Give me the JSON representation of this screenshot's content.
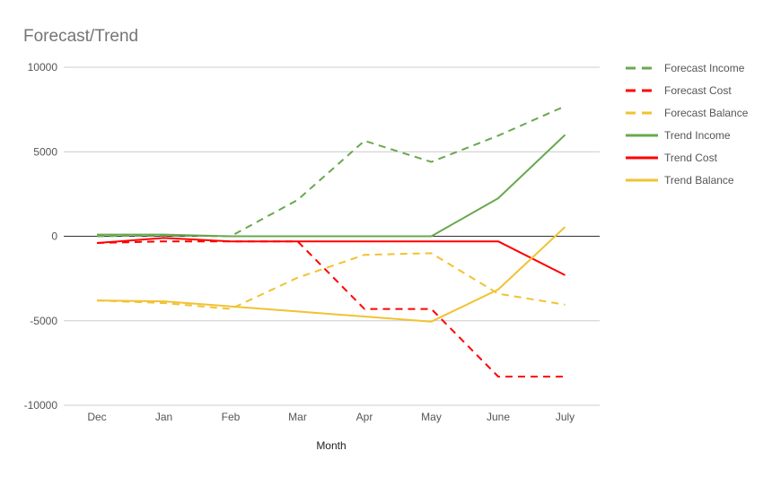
{
  "chart_data": {
    "type": "line",
    "title": "Forecast/Trend",
    "xlabel": "Month",
    "ylabel": "",
    "categories": [
      "Dec",
      "Jan",
      "Feb",
      "Mar",
      "Apr",
      "May",
      "June",
      "July"
    ],
    "ylim": [
      -10000,
      10000
    ],
    "yticks": [
      10000,
      5000,
      0,
      -5000,
      -10000
    ],
    "grid": true,
    "legend_position": "right",
    "series": [
      {
        "name": "Forecast Income",
        "color": "#6aa84f",
        "style": "dashed",
        "values": [
          0,
          50,
          0,
          2150,
          5650,
          4400,
          5950,
          7700
        ]
      },
      {
        "name": "Forecast Cost",
        "color": "#ff0000",
        "style": "dashed",
        "values": [
          -400,
          -300,
          -300,
          -300,
          -4300,
          -4300,
          -8300,
          -8300
        ]
      },
      {
        "name": "Forecast Balance",
        "color": "#f1c232",
        "style": "dashed",
        "values": [
          -3800,
          -3950,
          -4300,
          -2450,
          -1100,
          -1000,
          -3400,
          -4050
        ]
      },
      {
        "name": "Trend Income",
        "color": "#6aa84f",
        "style": "solid",
        "values": [
          100,
          100,
          0,
          0,
          0,
          0,
          2250,
          6000
        ]
      },
      {
        "name": "Trend Cost",
        "color": "#ff0000",
        "style": "solid",
        "values": [
          -400,
          -100,
          -300,
          -300,
          -300,
          -300,
          -300,
          -2300
        ]
      },
      {
        "name": "Trend Balance",
        "color": "#f1c232",
        "style": "solid",
        "values": [
          -3800,
          -3850,
          -4150,
          -4450,
          -4750,
          -5050,
          -3150,
          550
        ]
      }
    ]
  }
}
